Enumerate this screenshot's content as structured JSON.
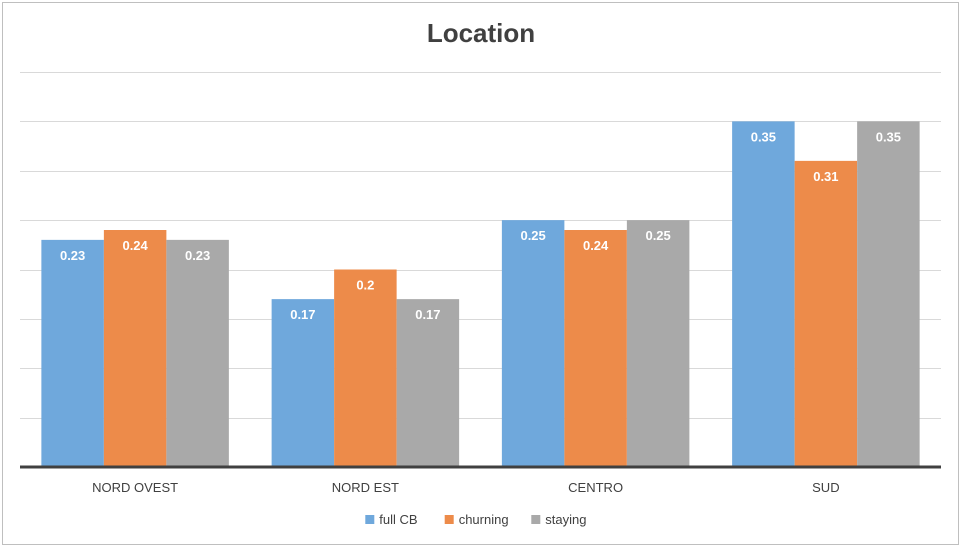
{
  "chart_data": {
    "type": "bar",
    "title": "Location",
    "categories": [
      "NORD OVEST",
      "NORD EST",
      "CENTRO",
      "SUD"
    ],
    "series": [
      {
        "name": "full CB",
        "color": "#6fa8dc",
        "values": [
          0.23,
          0.17,
          0.25,
          0.35
        ]
      },
      {
        "name": "churning",
        "color": "#ed8b4a",
        "values": [
          0.24,
          0.2,
          0.24,
          0.31
        ]
      },
      {
        "name": "staying",
        "color": "#a9a9a9",
        "values": [
          0.23,
          0.17,
          0.25,
          0.35
        ]
      }
    ],
    "ylim": [
      0,
      0.4
    ],
    "grid": true,
    "y_tick_labels_visible": false,
    "data_labels": true,
    "legend_position": "bottom"
  }
}
